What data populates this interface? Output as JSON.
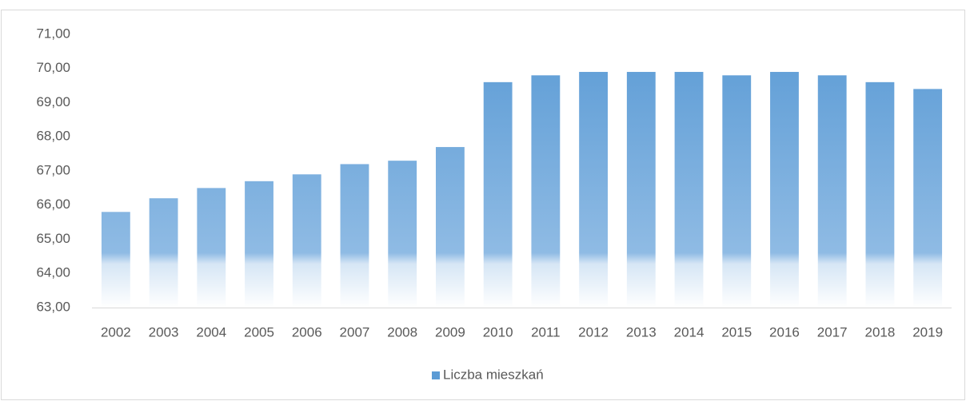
{
  "chart_data": {
    "type": "bar",
    "categories": [
      "2002",
      "2003",
      "2004",
      "2005",
      "2006",
      "2007",
      "2008",
      "2009",
      "2010",
      "2011",
      "2012",
      "2013",
      "2014",
      "2015",
      "2016",
      "2017",
      "2018",
      "2019"
    ],
    "series": [
      {
        "name": "Liczba mieszkań",
        "color": "#5b9bd5",
        "values": [
          65.8,
          66.2,
          66.5,
          66.7,
          66.9,
          67.2,
          67.3,
          67.7,
          69.6,
          69.8,
          69.9,
          69.9,
          69.9,
          69.8,
          69.9,
          69.8,
          69.6,
          69.4
        ]
      }
    ],
    "ylim": [
      63,
      71
    ],
    "yticks": [
      {
        "value": 63,
        "label": "63,00"
      },
      {
        "value": 64,
        "label": "64,00"
      },
      {
        "value": 65,
        "label": "65,00"
      },
      {
        "value": 66,
        "label": "66,00"
      },
      {
        "value": 67,
        "label": "67,00"
      },
      {
        "value": 68,
        "label": "68,00"
      },
      {
        "value": 69,
        "label": "69,00"
      },
      {
        "value": 70,
        "label": "70,00"
      },
      {
        "value": 71,
        "label": "71,00"
      }
    ],
    "grid": false,
    "legend": "bottom"
  }
}
